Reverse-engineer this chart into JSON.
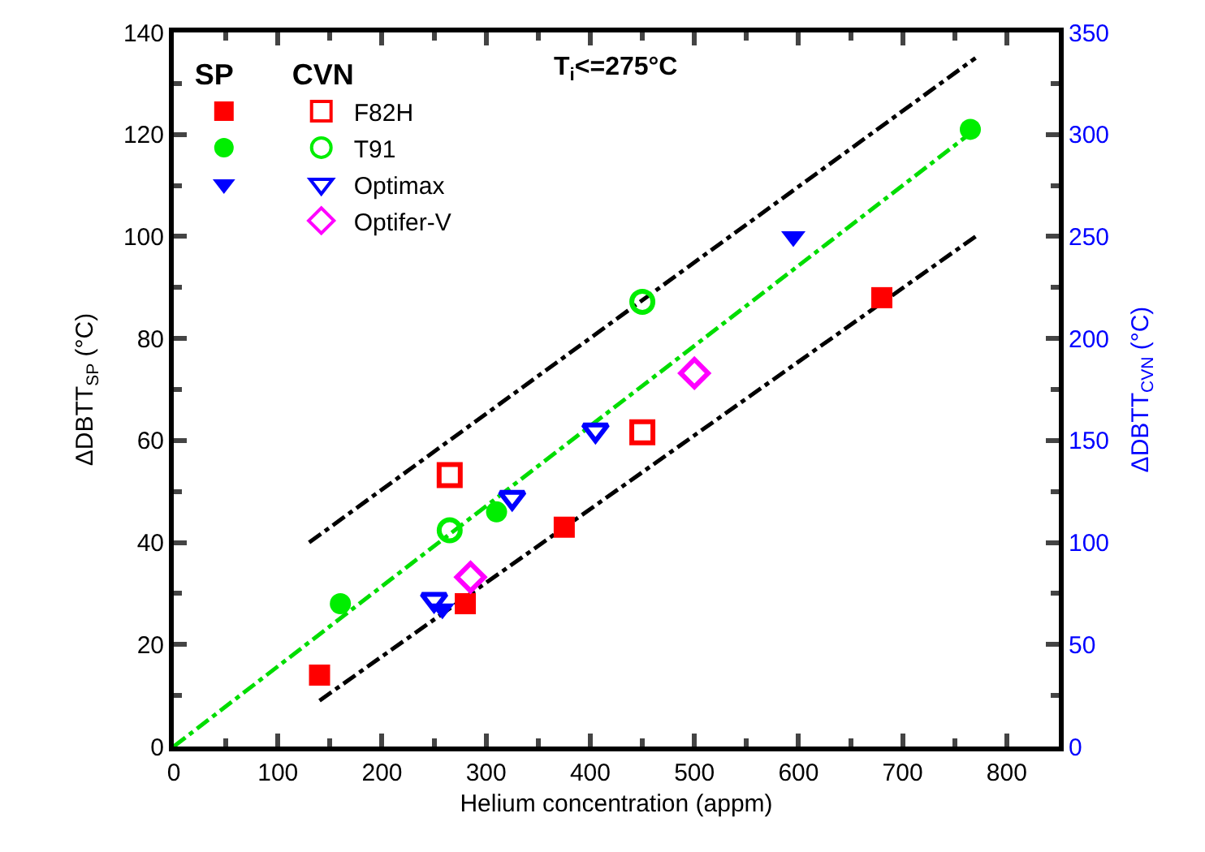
{
  "chart_data": {
    "type": "scatter",
    "xlabel": "Helium concentration (appm)",
    "ylabel": "ΔDBTT$_{SP}$ (°C)",
    "y2label": "ΔDBTT$_{CVN}$ (°C)",
    "legend_title": [
      "SP",
      "CVN"
    ],
    "annotations": [
      "T$_{i}$<=275°C"
    ],
    "xlim": [
      0,
      850
    ],
    "xticks": [
      0,
      100,
      200,
      300,
      400,
      500,
      600,
      700,
      800
    ],
    "ylim": [
      0,
      140
    ],
    "yticks": [
      0,
      20,
      40,
      60,
      80,
      100,
      120,
      140
    ],
    "y2lim": [
      0,
      350
    ],
    "y2ticks": [
      0,
      50,
      100,
      150,
      200,
      250,
      300,
      350
    ],
    "legend": "top left",
    "series": [
      {
        "color": "#ff0000",
        "marker": "square",
        "axis": "y",
        "x": [
          140,
          280,
          375,
          680
        ],
        "values": [
          14,
          28,
          43,
          88
        ]
      },
      {
        "color": "#00ee00",
        "marker": "circle",
        "axis": "y",
        "x": [
          160,
          310,
          765
        ],
        "values": [
          28,
          46,
          121
        ]
      },
      {
        "color": "#0000ff",
        "marker": "triangle",
        "axis": "y",
        "x": [
          258,
          595
        ],
        "values": [
          27,
          100
        ]
      },
      {
        "name": "F82H",
        "color": "#ff0000",
        "marker": "square",
        "axis": "y2",
        "x": [
          265,
          450
        ],
        "values": [
          133,
          154
        ]
      },
      {
        "name": "T91",
        "color": "#00ee00",
        "marker": "circle",
        "axis": "y2",
        "x": [
          265,
          450
        ],
        "values": [
          106,
          218
        ]
      },
      {
        "name": "Optimax",
        "color": "#0000ff",
        "marker": "triangle",
        "axis": "y2",
        "x": [
          250,
          325,
          405
        ],
        "values": [
          72,
          122,
          155
        ]
      },
      {
        "name": "Optifer-V",
        "color": "#ff00ff",
        "marker": "diamond",
        "axis": "y2",
        "x": [
          285,
          500
        ],
        "values": [
          83,
          183
        ]
      },
      {
        "type": "line",
        "color": "#00dd00",
        "marker": "none",
        "line_style": "dashed",
        "axis": "y",
        "x": [
          0,
          770
        ],
        "values": [
          0,
          121
        ]
      },
      {
        "type": "line",
        "color": "#000000",
        "marker": "none",
        "line_style": "dashed",
        "axis": "y",
        "x": [
          130,
          770
        ],
        "values": [
          40,
          135
        ]
      },
      {
        "type": "line",
        "color": "#000000",
        "marker": "none",
        "line_style": "dashed",
        "axis": "y",
        "x": [
          140,
          770
        ],
        "values": [
          9,
          100
        ]
      }
    ]
  }
}
